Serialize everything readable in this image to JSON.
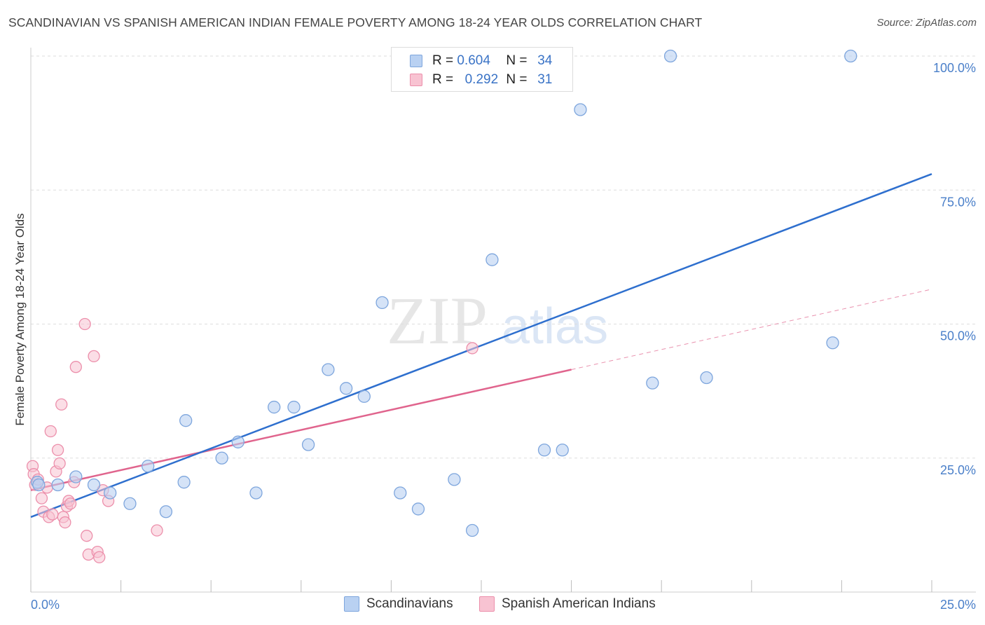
{
  "header": {
    "title": "SCANDINAVIAN VS SPANISH AMERICAN INDIAN FEMALE POVERTY AMONG 18-24 YEAR OLDS CORRELATION CHART",
    "source": "Source: ZipAtlas.com"
  },
  "watermark": {
    "zip": "ZIP",
    "atlas": "atlas"
  },
  "legend": {
    "series1": {
      "r_label": "R =",
      "r_value": "0.604",
      "n_label": "N =",
      "n_value": "34"
    },
    "series2": {
      "r_label": "R =",
      "r_value": "0.292",
      "n_label": "N =",
      "n_value": "31"
    }
  },
  "bottom_legend": {
    "series1": "Scandinavians",
    "series2": "Spanish American Indians"
  },
  "colors": {
    "blue_fill": "#b9d1f2",
    "blue_stroke": "#7ea6dd",
    "blue_line": "#2e6fce",
    "pink_fill": "#f8c3d2",
    "pink_stroke": "#ec8fab",
    "pink_line": "#e0648d",
    "tick_label": "#4a7fc9",
    "grid": "#dedede"
  },
  "chart_data": {
    "type": "scatter",
    "title": "SCANDINAVIAN VS SPANISH AMERICAN INDIAN FEMALE POVERTY AMONG 18-24 YEAR OLDS CORRELATION CHART",
    "ylabel": "Female Poverty Among 18-24 Year Olds",
    "xlabel": "",
    "xlim": [
      0,
      25
    ],
    "ylim": [
      0,
      100
    ],
    "x_tick_labels": [
      "0.0%",
      "25.0%"
    ],
    "y_ticks": [
      25,
      50,
      75,
      100
    ],
    "y_tick_labels": [
      "25.0%",
      "50.0%",
      "75.0%",
      "100.0%"
    ],
    "grid": "horizontal dashed",
    "series": [
      {
        "name": "Scandinavians",
        "color": "#7ea6dd",
        "R": 0.604,
        "N": 34,
        "trend": {
          "x": [
            0,
            25
          ],
          "y": [
            14.0,
            78.0
          ]
        },
        "points": [
          [
            0.18,
            20.5
          ],
          [
            0.22,
            20.0
          ],
          [
            0.75,
            20.0
          ],
          [
            1.25,
            21.5
          ],
          [
            1.75,
            20.0
          ],
          [
            2.2,
            18.5
          ],
          [
            2.75,
            16.5
          ],
          [
            3.25,
            23.5
          ],
          [
            3.75,
            15.0
          ],
          [
            4.25,
            20.5
          ],
          [
            4.3,
            32.0
          ],
          [
            5.3,
            25.0
          ],
          [
            5.75,
            28.0
          ],
          [
            6.25,
            18.5
          ],
          [
            6.75,
            34.5
          ],
          [
            7.3,
            34.5
          ],
          [
            7.7,
            27.5
          ],
          [
            8.25,
            41.5
          ],
          [
            8.75,
            38.0
          ],
          [
            9.25,
            36.5
          ],
          [
            9.75,
            54.0
          ],
          [
            10.25,
            18.5
          ],
          [
            10.75,
            15.5
          ],
          [
            11.75,
            21.0
          ],
          [
            12.25,
            11.5
          ],
          [
            12.8,
            62.0
          ],
          [
            14.25,
            26.5
          ],
          [
            14.75,
            26.5
          ],
          [
            15.25,
            90.0
          ],
          [
            17.25,
            39.0
          ],
          [
            17.75,
            100.0
          ],
          [
            18.75,
            40.0
          ],
          [
            22.25,
            46.5
          ],
          [
            22.75,
            100.0
          ]
        ]
      },
      {
        "name": "Spanish American Indians",
        "color": "#ec8fab",
        "R": 0.292,
        "N": 31,
        "trend": {
          "x": [
            0,
            15
          ],
          "y": [
            19.0,
            41.5
          ]
        },
        "trend_dashed_extension": {
          "x": [
            15,
            25
          ],
          "y": [
            41.5,
            56.5
          ]
        },
        "points": [
          [
            0.05,
            23.5
          ],
          [
            0.08,
            22.0
          ],
          [
            0.12,
            20.0
          ],
          [
            0.2,
            21.0
          ],
          [
            0.3,
            17.5
          ],
          [
            0.35,
            15.0
          ],
          [
            0.45,
            19.5
          ],
          [
            0.5,
            14.0
          ],
          [
            0.55,
            30.0
          ],
          [
            0.6,
            14.5
          ],
          [
            0.7,
            22.5
          ],
          [
            0.75,
            26.5
          ],
          [
            0.8,
            24.0
          ],
          [
            0.85,
            35.0
          ],
          [
            0.9,
            14.0
          ],
          [
            0.95,
            13.0
          ],
          [
            1.0,
            16.0
          ],
          [
            1.05,
            17.0
          ],
          [
            1.1,
            16.5
          ],
          [
            1.2,
            20.5
          ],
          [
            1.25,
            42.0
          ],
          [
            1.5,
            50.0
          ],
          [
            1.55,
            10.5
          ],
          [
            1.6,
            7.0
          ],
          [
            1.75,
            44.0
          ],
          [
            1.85,
            7.5
          ],
          [
            1.9,
            6.5
          ],
          [
            2.0,
            19.0
          ],
          [
            2.15,
            17.0
          ],
          [
            3.5,
            11.5
          ],
          [
            12.25,
            45.5
          ]
        ]
      }
    ]
  }
}
